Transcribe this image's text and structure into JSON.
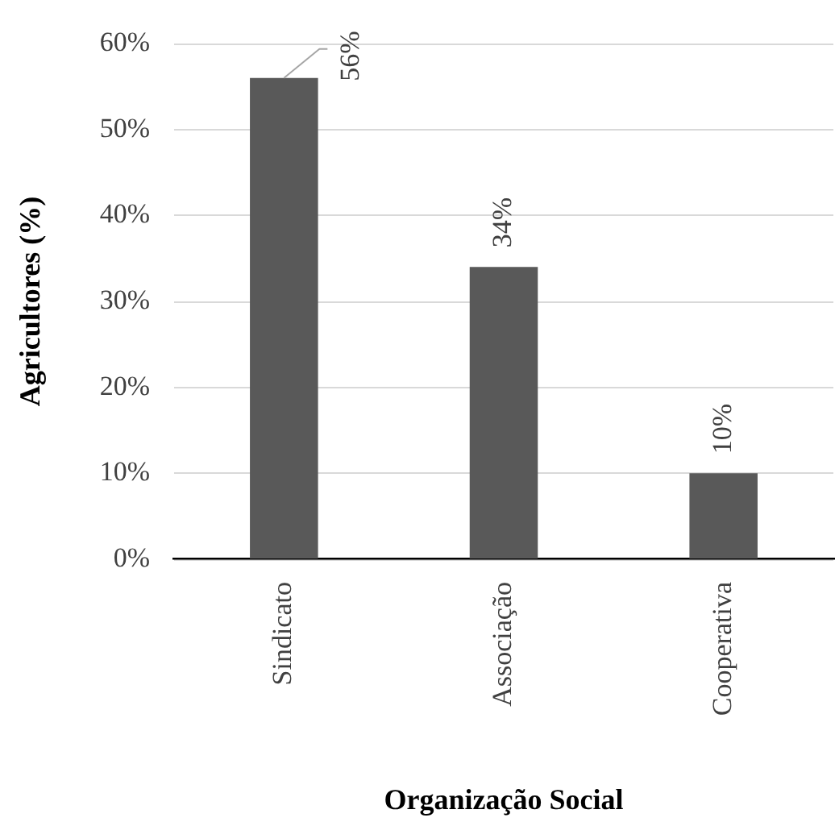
{
  "chart_data": {
    "type": "bar",
    "xlabel": "Organização Social",
    "ylabel": "Agricultores (%)",
    "categories": [
      "Sindicato",
      "Associação",
      "Cooperativa"
    ],
    "values": [
      56,
      34,
      10
    ],
    "color": "#595959",
    "value_labels": [
      "56%",
      "34%",
      "10%"
    ],
    "ylim": [
      0,
      60
    ],
    "yticks": [
      {
        "value": 0,
        "label": "0%"
      },
      {
        "value": 10,
        "label": "10%"
      },
      {
        "value": 20,
        "label": "20%"
      },
      {
        "value": 30,
        "label": "30%"
      },
      {
        "value": 40,
        "label": "40%"
      },
      {
        "value": 50,
        "label": "50%"
      },
      {
        "value": 60,
        "label": "60%"
      }
    ],
    "grid": "y",
    "legend": false
  }
}
